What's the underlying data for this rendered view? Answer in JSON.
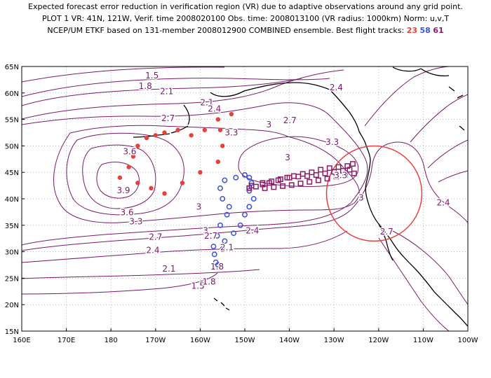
{
  "header": {
    "line1": "Expected forecast error reduction in verification region (VR) due to adaptive observations around any grid point.",
    "line2": "PLOT 1 VR: 41N, 121W, Verif. time 2008020100 Obs. time: 2008013100 (VR radius: 1000km) Norm: u,v,T",
    "line3": "NCEP/UM ETKF based on 131-member 2008012900 COMBINED ensemble.  Best flight tracks:",
    "track_ids": [
      "23",
      "58",
      "61"
    ]
  },
  "axes": {
    "lat_labels": [
      "65N",
      "60N",
      "55N",
      "50N",
      "45N",
      "40N",
      "35N",
      "30N",
      "25N",
      "20N",
      "15N"
    ],
    "lon_labels": [
      "160E",
      "170E",
      "180",
      "170W",
      "160W",
      "150W",
      "140W",
      "130W",
      "120W",
      "110W",
      "100W"
    ]
  },
  "colors": {
    "contour": "#7b1a6c",
    "coast": "#000000",
    "grid": "#a0a0a0",
    "track23": "#e8413c",
    "track58": "#3a53d8",
    "track61": "#8a1c6a",
    "vr_circle": "#e8413c"
  },
  "contour_labels": [
    {
      "text": "1.5",
      "lon": -170.8,
      "lat": 63.3
    },
    {
      "text": "1.8",
      "lon": -172.3,
      "lat": 61.3
    },
    {
      "text": "2.1",
      "lon": -167.5,
      "lat": 60.3
    },
    {
      "text": "2.1",
      "lon": -158.5,
      "lat": 58.2
    },
    {
      "text": "2.4",
      "lon": -156.8,
      "lat": 57.0
    },
    {
      "text": "2.7",
      "lon": -167.2,
      "lat": 55.2
    },
    {
      "text": "2.7",
      "lon": -139.9,
      "lat": 54.8
    },
    {
      "text": "2.4",
      "lon": -129.5,
      "lat": 61.0
    },
    {
      "text": "3",
      "lon": -144.6,
      "lat": 54.0
    },
    {
      "text": "3",
      "lon": -140.4,
      "lat": 47.8
    },
    {
      "text": "3.3",
      "lon": -153.0,
      "lat": 52.5
    },
    {
      "text": "3.3",
      "lon": -130.4,
      "lat": 50.7
    },
    {
      "text": "3.3",
      "lon": -128.5,
      "lat": 44.4
    },
    {
      "text": "3.6",
      "lon": -175.8,
      "lat": 48.9
    },
    {
      "text": "3.9",
      "lon": -177.2,
      "lat": 41.6
    },
    {
      "text": "3",
      "lon": -123.9,
      "lat": 40.2
    },
    {
      "text": "3.6",
      "lon": -176.4,
      "lat": 37.4
    },
    {
      "text": "3.3",
      "lon": -174.4,
      "lat": 35.7
    },
    {
      "text": "3",
      "lon": -160.3,
      "lat": 38.5
    },
    {
      "text": "3",
      "lon": -158.8,
      "lat": 34.0
    },
    {
      "text": "2.7",
      "lon": -157.6,
      "lat": 33.0
    },
    {
      "text": "2.4",
      "lon": -148.3,
      "lat": 34.0
    },
    {
      "text": "2.1",
      "lon": -154.0,
      "lat": 30.8
    },
    {
      "text": "1.8",
      "lon": -156.2,
      "lat": 27.2
    },
    {
      "text": "1.5",
      "lon": -160.5,
      "lat": 23.5
    },
    {
      "text": "2.7",
      "lon": -118.2,
      "lat": 33.8
    },
    {
      "text": "2.4",
      "lon": -105.5,
      "lat": 39.3
    },
    {
      "text": "2.7",
      "lon": -170.0,
      "lat": 32.8
    },
    {
      "text": "2.4",
      "lon": -170.6,
      "lat": 30.3
    },
    {
      "text": "2.1",
      "lon": -167.0,
      "lat": 26.8
    },
    {
      "text": "1.8",
      "lon": -158.0,
      "lat": 24.3
    }
  ],
  "vr_circle": {
    "lat": 41,
    "lon": -121,
    "radius_km": 1000
  },
  "tracks": {
    "t23": [
      [
        -153,
        56
      ],
      [
        -156,
        55
      ],
      [
        -159,
        53
      ],
      [
        -162,
        52
      ],
      [
        -165,
        53
      ],
      [
        -168,
        52.5
      ],
      [
        -170,
        52
      ],
      [
        -172,
        51.5
      ],
      [
        -174,
        50
      ],
      [
        -175,
        48
      ],
      [
        -176,
        46
      ],
      [
        -178,
        44
      ],
      [
        -174,
        43
      ],
      [
        -171,
        42
      ],
      [
        -168,
        41
      ],
      [
        -164,
        43
      ],
      [
        -160,
        45
      ],
      [
        -156,
        47
      ],
      [
        -155,
        50
      ],
      [
        -155.5,
        53
      ]
    ],
    "t58": [
      [
        -156.5,
        28
      ],
      [
        -155.5,
        27
      ],
      [
        -156.8,
        29.5
      ],
      [
        -157,
        31
      ],
      [
        -156.2,
        33
      ],
      [
        -155.5,
        35
      ],
      [
        -154,
        37
      ],
      [
        -153.5,
        38.5
      ],
      [
        -155,
        40
      ],
      [
        -155.5,
        42
      ],
      [
        -154.5,
        43.5
      ],
      [
        -152,
        44
      ],
      [
        -150,
        44.5
      ],
      [
        -149,
        44
      ],
      [
        -148.5,
        43
      ],
      [
        -149,
        41.5
      ],
      [
        -148,
        40
      ],
      [
        -149,
        38.5
      ],
      [
        -150,
        37
      ],
      [
        -151,
        35
      ],
      [
        -152.5,
        33.5
      ],
      [
        -154.5,
        32
      ],
      [
        -155,
        30.5
      ],
      [
        -156,
        27.5
      ]
    ],
    "t61": [
      [
        -149,
        42
      ],
      [
        -147.5,
        42.3
      ],
      [
        -146,
        42.7
      ],
      [
        -144.5,
        43
      ],
      [
        -142.5,
        43.5
      ],
      [
        -140.5,
        44
      ],
      [
        -139,
        44.3
      ],
      [
        -137,
        44.7
      ],
      [
        -135,
        45
      ],
      [
        -133,
        45.5
      ],
      [
        -131,
        45.8
      ],
      [
        -129,
        46
      ],
      [
        -127,
        46.2
      ],
      [
        -125.8,
        46.6
      ],
      [
        -126.5,
        45.5
      ],
      [
        -128,
        45.3
      ],
      [
        -130,
        45.1
      ],
      [
        -132,
        44.8
      ],
      [
        -134,
        44.5
      ],
      [
        -136,
        44.3
      ],
      [
        -138,
        44.2
      ],
      [
        -140,
        44
      ],
      [
        -142,
        43.7
      ],
      [
        -144,
        43.3
      ],
      [
        -146,
        43
      ],
      [
        -148.5,
        42.5
      ],
      [
        -125.5,
        44.8
      ],
      [
        -127.5,
        44.5
      ],
      [
        -129.5,
        44.2
      ],
      [
        -131.5,
        43.8
      ],
      [
        -133.5,
        43.5
      ],
      [
        -135.5,
        43.2
      ],
      [
        -137.5,
        42.9
      ],
      [
        -139.5,
        42.6
      ],
      [
        -141.5,
        42.4
      ],
      [
        -143.5,
        42.2
      ],
      [
        -145.5,
        42
      ]
    ]
  }
}
